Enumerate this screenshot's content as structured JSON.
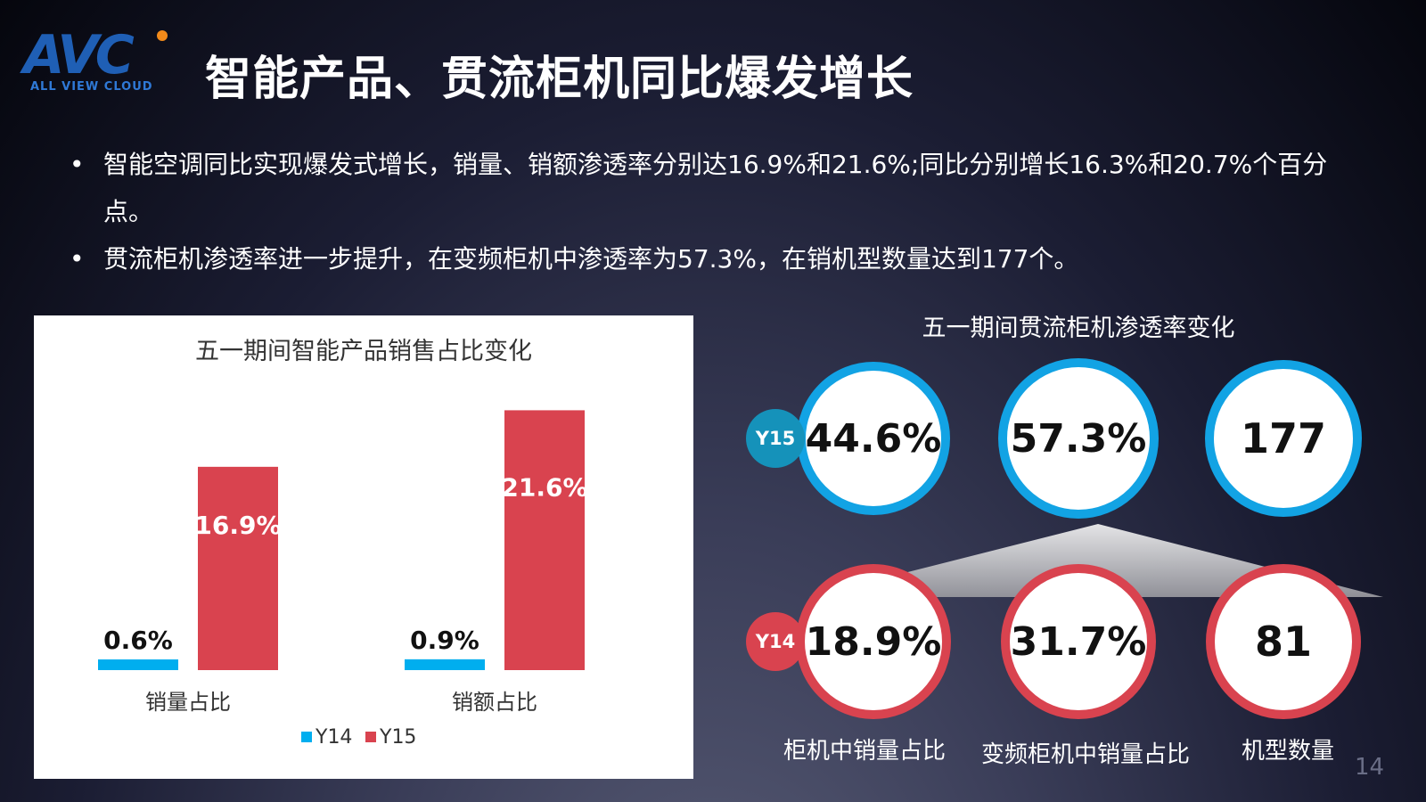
{
  "logo": {
    "word": "AVC",
    "subtitle": "ALL VIEW CLOUD"
  },
  "title": "智能产品、贯流柜机同比爆发增长",
  "bullets": [
    "智能空调同比实现爆发式增长，销量、销额渗透率分别达16.9%和21.6%;同比分别增长16.3%和20.7%个百分点。",
    "贯流柜机渗透率进一步提升，在变频柜机中渗透率为57.3%，在销机型数量达到177个。"
  ],
  "bullet_symbol": "•",
  "chart_data": [
    {
      "type": "bar",
      "title": "五一期间智能产品销售占比变化",
      "categories": [
        "销量占比",
        "销额占比"
      ],
      "series": [
        {
          "name": "Y14",
          "color": "#00aeef",
          "values": [
            0.6,
            0.9
          ],
          "labels": [
            "0.6%",
            "0.9%"
          ]
        },
        {
          "name": "Y15",
          "color": "#d9434f",
          "values": [
            16.9,
            21.6
          ],
          "labels": [
            "16.9%",
            "21.6%"
          ]
        }
      ],
      "ylim": [
        0,
        24
      ],
      "legend": "bottom"
    },
    {
      "type": "table",
      "title": "五一期间贯流柜机渗透率变化",
      "columns": [
        "柜机中销量占比",
        "变频柜机中销量占比",
        "机型数量"
      ],
      "rows": [
        {
          "name": "Y15",
          "color": "#12a3e4",
          "values": [
            "44.6%",
            "57.3%",
            "177"
          ]
        },
        {
          "name": "Y14",
          "color": "#d9434f",
          "values": [
            "18.9%",
            "31.7%",
            "81"
          ]
        }
      ]
    }
  ],
  "page_number": "14"
}
